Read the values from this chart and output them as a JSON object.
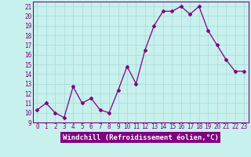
{
  "x": [
    0,
    1,
    2,
    3,
    4,
    5,
    6,
    7,
    8,
    9,
    10,
    11,
    12,
    13,
    14,
    15,
    16,
    17,
    18,
    19,
    20,
    21,
    22,
    23
  ],
  "y": [
    10.3,
    11.0,
    10.0,
    9.5,
    12.7,
    11.0,
    11.5,
    10.3,
    10.0,
    12.3,
    14.8,
    13.0,
    16.5,
    19.0,
    20.5,
    20.5,
    21.0,
    20.2,
    21.0,
    18.5,
    17.0,
    15.5,
    14.3,
    14.3
  ],
  "line_color": "#800080",
  "bg_color": "#c8f0ec",
  "grid_color": "#aadddd",
  "xlabel": "Windchill (Refroidissement éolien,°C)",
  "xlim": [
    -0.5,
    23.5
  ],
  "ylim": [
    9,
    21.5
  ],
  "yticks": [
    9,
    10,
    11,
    12,
    13,
    14,
    15,
    16,
    17,
    18,
    19,
    20,
    21
  ],
  "xticks": [
    0,
    1,
    2,
    3,
    4,
    5,
    6,
    7,
    8,
    9,
    10,
    11,
    12,
    13,
    14,
    15,
    16,
    17,
    18,
    19,
    20,
    21,
    22,
    23
  ],
  "tick_fontsize": 5.5,
  "xlabel_fontsize": 6.5,
  "marker": "D",
  "marker_size": 2.0,
  "linewidth": 0.9
}
